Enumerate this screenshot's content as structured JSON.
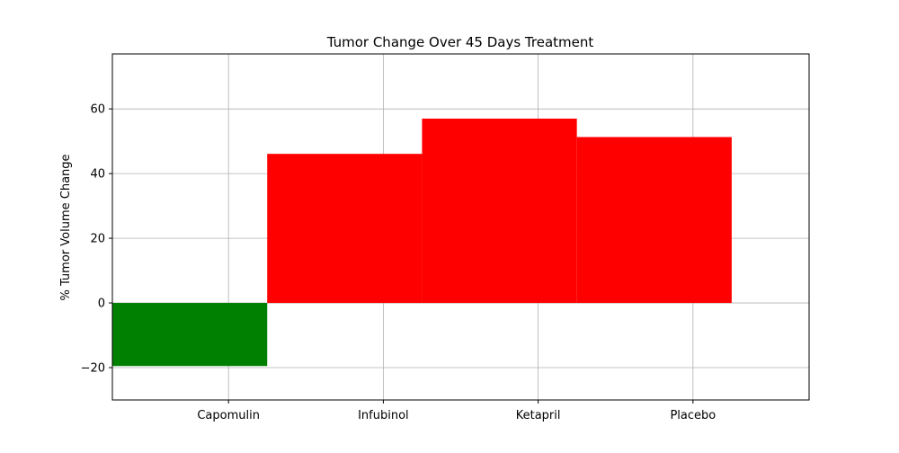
{
  "chart_data": {
    "type": "bar",
    "title": "Tumor Change Over 45 Days Treatment",
    "xlabel": "",
    "ylabel": "% Tumor Volume Change",
    "categories": [
      "Capomulin",
      "Infubinol",
      "Ketapril",
      "Placebo"
    ],
    "values": [
      -19.5,
      46.1,
      57.0,
      51.3
    ],
    "bar_colors": [
      "#008000",
      "#ff0000",
      "#ff0000",
      "#ff0000"
    ],
    "ylim": [
      -30,
      77
    ],
    "yticks": [
      -20,
      0,
      20,
      40,
      60
    ],
    "ytick_labels": [
      "−20",
      "0",
      "20",
      "40",
      "60"
    ],
    "grid": true,
    "legend": "none",
    "colors": {
      "grid": "#b0b0b0",
      "axes": "#000000"
    }
  }
}
